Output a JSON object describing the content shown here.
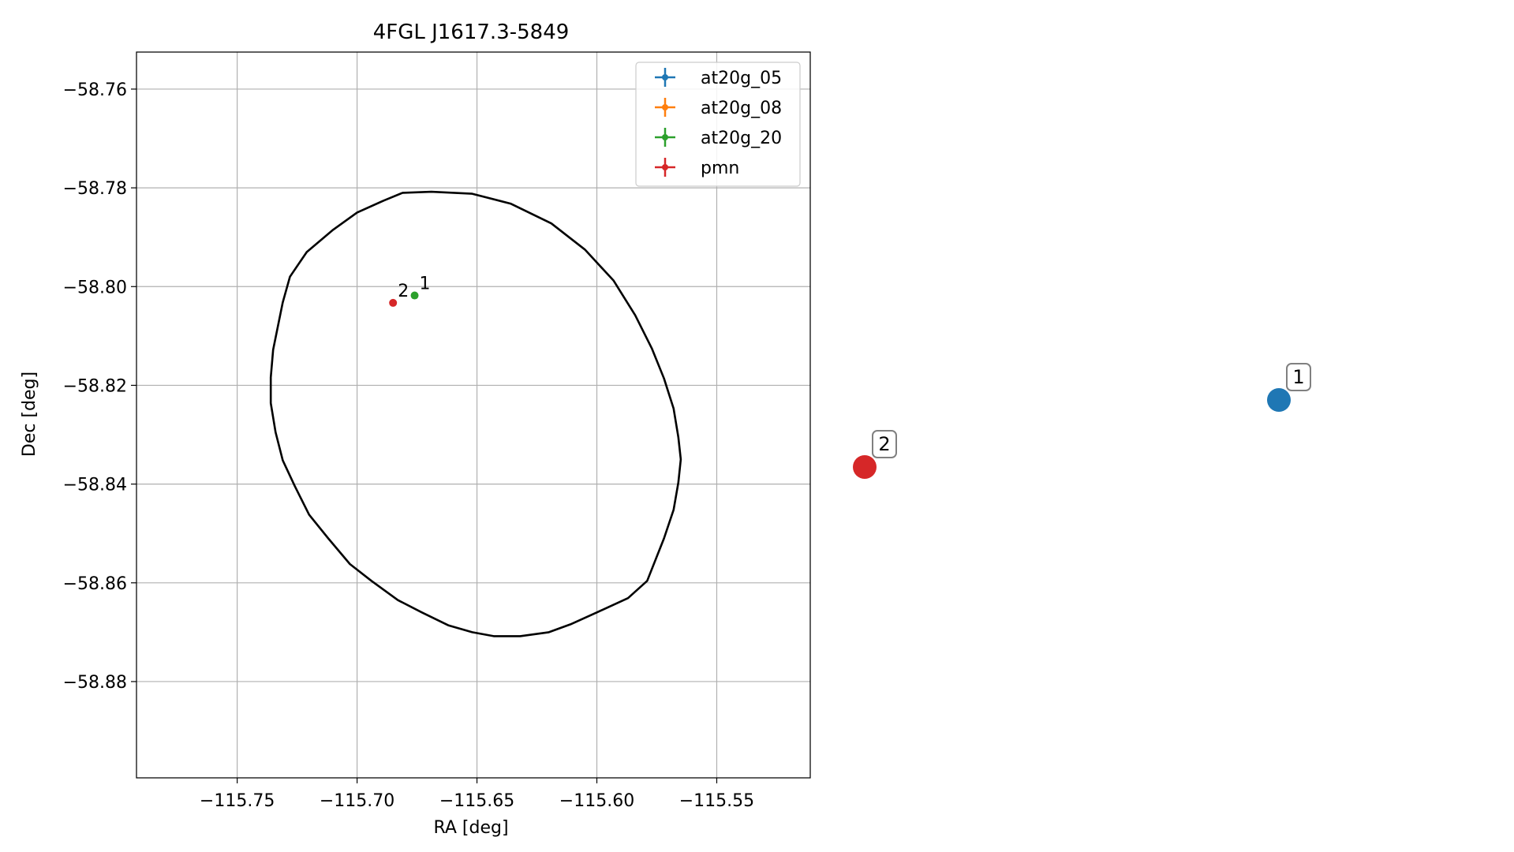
{
  "chart_data": [
    {
      "type": "scatter",
      "title": "4FGL J1617.3-5849",
      "xlabel": "RA [deg]",
      "ylabel": "Dec [deg]",
      "xlim": [
        -115.792,
        -115.511
      ],
      "ylim": [
        -58.8995,
        -58.7525
      ],
      "xticks": [
        -115.75,
        -115.7,
        -115.65,
        -115.6,
        -115.55
      ],
      "xtick_labels": [
        "−115.75",
        "−115.70",
        "−115.65",
        "−115.60",
        "−115.55"
      ],
      "yticks": [
        -58.76,
        -58.78,
        -58.8,
        -58.82,
        -58.84,
        -58.86,
        -58.88
      ],
      "ytick_labels": [
        "−58.76",
        "−58.78",
        "−58.80",
        "−58.82",
        "−58.84",
        "−58.86",
        "−58.88"
      ],
      "grid": true,
      "legend_position": "top-right",
      "series": [
        {
          "name": "at20g_05",
          "color": "#1f77b4",
          "points": []
        },
        {
          "name": "at20g_08",
          "color": "#ff7f0e",
          "points": []
        },
        {
          "name": "at20g_20",
          "color": "#2ca02c",
          "points": [
            {
              "x": -115.676,
              "y": -58.8018,
              "label": "1"
            }
          ]
        },
        {
          "name": "pmn",
          "color": "#d62728",
          "points": [
            {
              "x": -115.685,
              "y": -58.8033,
              "label": "2"
            }
          ]
        }
      ],
      "ellipse": {
        "color": "#000000",
        "points": [
          [
            -115.669,
            -58.7808
          ],
          [
            -115.652,
            -58.7812
          ],
          [
            -115.636,
            -58.7832
          ],
          [
            -115.619,
            -58.7872
          ],
          [
            -115.605,
            -58.7925
          ],
          [
            -115.593,
            -58.7988
          ],
          [
            -115.584,
            -58.8058
          ],
          [
            -115.577,
            -58.8126
          ],
          [
            -115.572,
            -58.8186
          ],
          [
            -115.568,
            -58.8247
          ],
          [
            -115.566,
            -58.8305
          ],
          [
            -115.565,
            -58.835
          ],
          [
            -115.566,
            -58.8397
          ],
          [
            -115.568,
            -58.8452
          ],
          [
            -115.572,
            -58.851
          ],
          [
            -115.579,
            -58.8596
          ],
          [
            -115.587,
            -58.8631
          ],
          [
            -115.6,
            -58.866
          ],
          [
            -115.611,
            -58.8684
          ],
          [
            -115.62,
            -58.87
          ],
          [
            -115.632,
            -58.8708
          ],
          [
            -115.643,
            -58.8708
          ],
          [
            -115.652,
            -58.87
          ],
          [
            -115.662,
            -58.8686
          ],
          [
            -115.673,
            -58.866
          ],
          [
            -115.683,
            -58.8635
          ],
          [
            -115.694,
            -58.8596
          ],
          [
            -115.703,
            -58.8562
          ],
          [
            -115.712,
            -58.851
          ],
          [
            -115.72,
            -58.8462
          ],
          [
            -115.726,
            -58.8404
          ],
          [
            -115.731,
            -58.8352
          ],
          [
            -115.734,
            -58.8295
          ],
          [
            -115.736,
            -58.8236
          ],
          [
            -115.736,
            -58.8184
          ],
          [
            -115.735,
            -58.8128
          ],
          [
            -115.733,
            -58.808
          ],
          [
            -115.731,
            -58.8032
          ],
          [
            -115.728,
            -58.798
          ],
          [
            -115.721,
            -58.793
          ],
          [
            -115.71,
            -58.7885
          ],
          [
            -115.7,
            -58.785
          ],
          [
            -115.689,
            -58.7826
          ],
          [
            -115.681,
            -58.781
          ]
        ]
      }
    },
    {
      "type": "scatter",
      "title": "",
      "axes": false,
      "series": [
        {
          "name": "",
          "color": "#1f77b4",
          "points": [
            {
              "x": 1,
              "y": 1,
              "label": "1"
            }
          ]
        },
        {
          "name": "",
          "color": "#d62728",
          "points": [
            {
              "x": 0,
              "y": 0,
              "label": "2"
            }
          ]
        }
      ]
    }
  ]
}
